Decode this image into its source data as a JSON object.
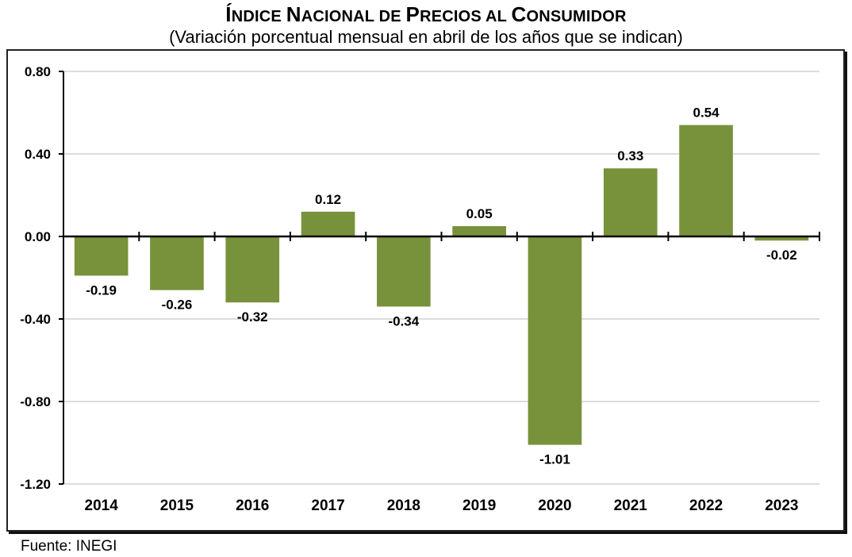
{
  "header": {
    "title": "ÍNDICE NACIONAL DE PRECIOS AL CONSUMIDOR",
    "title_parts": [
      {
        "big": "Í",
        "small": "NDICE "
      },
      {
        "big": "N",
        "small": "ACIONAL DE "
      },
      {
        "big": "P",
        "small": "RECIOS AL "
      },
      {
        "big": "C",
        "small": "ONSUMIDOR"
      }
    ],
    "subtitle": "(Variación porcentual mensual en abril de los años que se indican)"
  },
  "footer": {
    "source": "Fuente: INEGI"
  },
  "colors": {
    "bar": "#78923c",
    "grid": "#c8c8c8",
    "axis": "#000000",
    "text": "#000000"
  },
  "chart_data": {
    "type": "bar",
    "title": "Índice Nacional de Precios al Consumidor",
    "subtitle": "(Variación porcentual mensual en abril de los años que se indican)",
    "xlabel": "",
    "ylabel": "",
    "categories": [
      "2014",
      "2015",
      "2016",
      "2017",
      "2018",
      "2019",
      "2020",
      "2021",
      "2022",
      "2023"
    ],
    "values": [
      -0.19,
      -0.26,
      -0.32,
      0.12,
      -0.34,
      0.05,
      -1.01,
      0.33,
      0.54,
      -0.02
    ],
    "value_labels": [
      "-0.19",
      "-0.26",
      "-0.32",
      "0.12",
      "-0.34",
      "0.05",
      "-1.01",
      "0.33",
      "0.54",
      "-0.02"
    ],
    "ylim": [
      -1.2,
      0.8
    ],
    "yticks": [
      0.8,
      0.4,
      0.0,
      -0.4,
      -0.8,
      -1.2
    ],
    "ytick_labels": [
      "0.80",
      "0.40",
      "0.00",
      "-0.40",
      "-0.80",
      "-1.20"
    ],
    "grid": true,
    "legend": "none",
    "source": "Fuente: INEGI"
  }
}
